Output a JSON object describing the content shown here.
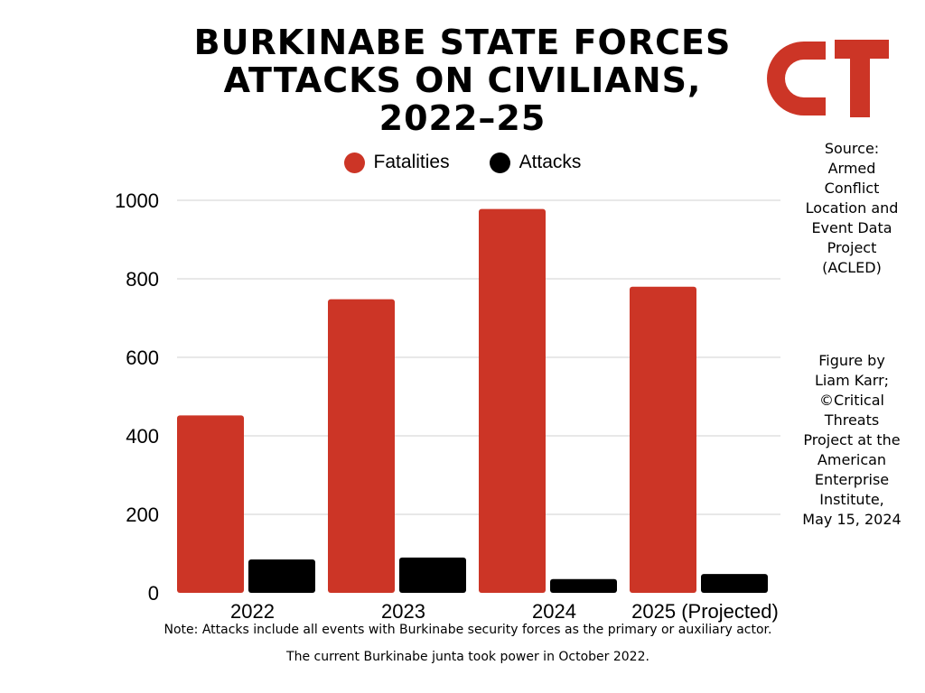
{
  "title_lines": [
    "BURKINABE STATE FORCES",
    "ATTACKS ON CIVILIANS,",
    "2022–25"
  ],
  "logo_text": "CT",
  "source_lines": [
    "Source:",
    "Armed",
    "Conflict",
    "Location and",
    "Event Data",
    "Project",
    "(ACLED)"
  ],
  "credit_lines": [
    "Figure by",
    "Liam Karr;",
    "©Critical",
    "Threats",
    "Project at the",
    "American",
    "Enterprise",
    "Institute,",
    "May 15, 2024"
  ],
  "notes": [
    "Note: Attacks include all events with Burkinabe security forces as the primary or auxiliary actor.",
    "The current Burkinabe junta took power in October 2022."
  ],
  "colors": {
    "fatalities": "#cc3526",
    "attacks": "#000000",
    "gridline": "#d0d0d0",
    "logo": "#cc3526"
  },
  "chart_data": {
    "type": "bar",
    "title": "BURKINABE STATE FORCES ATTACKS ON CIVILIANS, 2022–25",
    "categories": [
      "2022",
      "2023",
      "2024",
      "2025 (Projected)"
    ],
    "series": [
      {
        "name": "Fatalities",
        "values": [
          452,
          748,
          978,
          780
        ]
      },
      {
        "name": "Attacks",
        "values": [
          85,
          90,
          35,
          48
        ]
      }
    ],
    "ylim": [
      0,
      1000
    ],
    "yticks": [
      0,
      200,
      400,
      600,
      800,
      1000
    ],
    "grid": true,
    "legend_position": "top-center"
  }
}
